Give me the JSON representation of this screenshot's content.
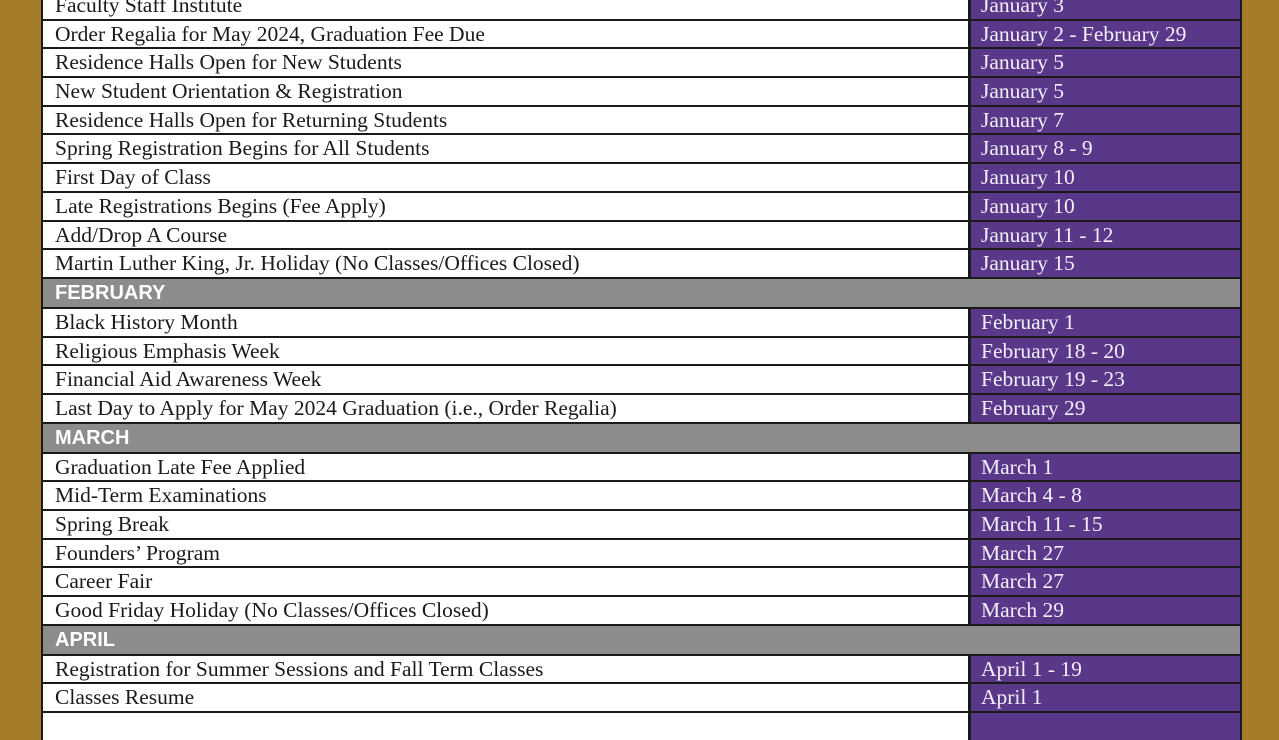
{
  "sections": [
    {
      "month": "",
      "events": [
        {
          "event": "Faculty Staff Institute",
          "date": "January 3"
        },
        {
          "event": "Order Regalia for May 2024, Graduation Fee Due",
          "date": "January 2 - February 29"
        },
        {
          "event": "Residence Halls Open for New Students",
          "date": "January 5"
        },
        {
          "event": "New Student Orientation & Registration",
          "date": "January 5"
        },
        {
          "event": "Residence Halls Open for Returning Students",
          "date": "January 7"
        },
        {
          "event": "Spring Registration Begins for All Students",
          "date": "January 8 - 9"
        },
        {
          "event": "First Day of Class",
          "date": "January 10"
        },
        {
          "event": "Late Registrations Begins (Fee Apply)",
          "date": "January 10"
        },
        {
          "event": "Add/Drop A Course",
          "date": "January 11 - 12"
        },
        {
          "event": "Martin Luther King, Jr. Holiday (No Classes/Offices Closed)",
          "date": "January 15"
        }
      ]
    },
    {
      "month": "FEBRUARY",
      "events": [
        {
          "event": "Black History Month",
          "date": "February 1"
        },
        {
          "event": "Religious Emphasis Week",
          "date": "February 18 - 20"
        },
        {
          "event": "Financial Aid Awareness Week",
          "date": "February 19 - 23"
        },
        {
          "event": "Last Day to Apply for May 2024 Graduation (i.e., Order Regalia)",
          "date": "February 29"
        }
      ]
    },
    {
      "month": "MARCH",
      "events": [
        {
          "event": "Graduation Late Fee Applied",
          "date": "March 1"
        },
        {
          "event": "Mid-Term Examinations",
          "date": "March 4 - 8"
        },
        {
          "event": "Spring Break",
          "date": "March 11 - 15"
        },
        {
          "event": "Founders’ Program",
          "date": "March 27"
        },
        {
          "event": "Career Fair",
          "date": "March 27"
        },
        {
          "event": "Good Friday Holiday (No Classes/Offices Closed)",
          "date": "March 29"
        }
      ]
    },
    {
      "month": "APRIL",
      "events": [
        {
          "event": "Registration for Summer Sessions and Fall Term Classes",
          "date": "April 1 - 19"
        },
        {
          "event": "Classes Resume",
          "date": "April 1"
        },
        {
          "event": "",
          "date": ""
        }
      ]
    }
  ],
  "colors": {
    "frame": "#a57c2a",
    "date_cell": "#5a3889",
    "month_header": "#8c8c8c"
  }
}
